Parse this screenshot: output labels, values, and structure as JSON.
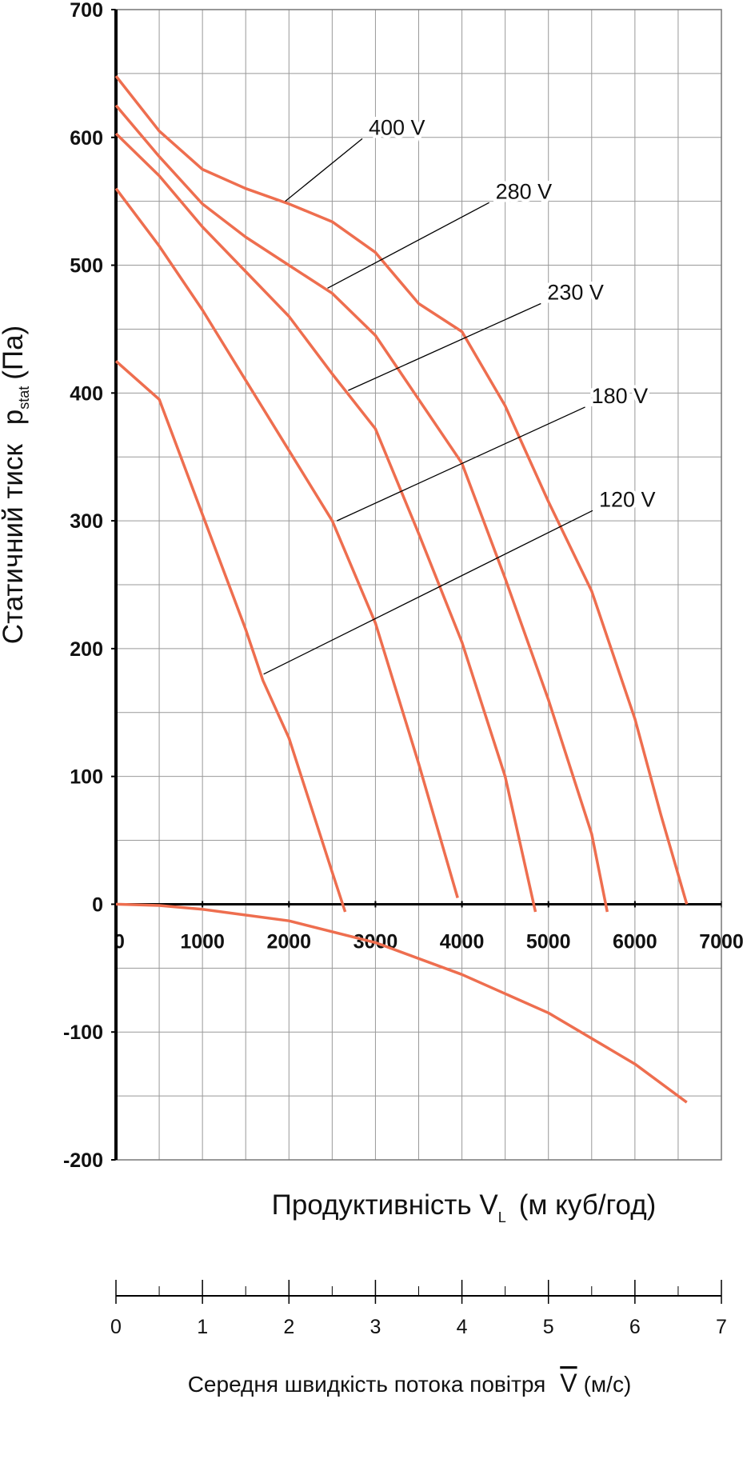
{
  "chart_data": {
    "type": "line",
    "ylabel": {
      "main": "Статичний тиск",
      "symbol": "p",
      "sub": "stat",
      "unit": "(Па)"
    },
    "xlabel": {
      "main": "Продуктивність V",
      "sub": "L",
      "unit": "(м куб/год)"
    },
    "x2label": {
      "main": "Середня швидкість потока повітря",
      "symbol": "V",
      "unit": "(м/с)"
    },
    "xlim": [
      0,
      7000
    ],
    "xticks": [
      0,
      1000,
      2000,
      3000,
      4000,
      5000,
      6000,
      7000
    ],
    "xminorticks": [
      500,
      1500,
      2500,
      3500,
      4500,
      5500,
      6500
    ],
    "ylim": [
      -200,
      700
    ],
    "yticks": [
      -200,
      -100,
      0,
      100,
      200,
      300,
      400,
      500,
      600,
      700
    ],
    "yminorticks": [
      -150,
      -50,
      50,
      150,
      250,
      350,
      450,
      550,
      650
    ],
    "x2lim": [
      0,
      7
    ],
    "x2ticks": [
      0,
      1,
      2,
      3,
      4,
      5,
      6,
      7
    ],
    "x2minorticks": [
      0.5,
      1.5,
      2.5,
      3.5,
      4.5,
      5.5,
      6.5
    ],
    "grid": true,
    "color": "#ee6e4f",
    "series": [
      {
        "x": [
          0,
          500,
          1000,
          1500,
          2000,
          2500,
          3000,
          3500,
          4000,
          4500,
          5000,
          5500,
          6000,
          6300,
          6600
        ],
        "values": [
          648,
          605,
          575,
          560,
          548,
          534,
          510,
          470,
          448,
          390,
          315,
          245,
          145,
          70,
          0
        ]
      },
      {
        "x": [
          0,
          500,
          1000,
          1500,
          2000,
          2500,
          3000,
          3500,
          4000,
          4500,
          5000,
          5500,
          5680
        ],
        "values": [
          625,
          585,
          548,
          522,
          500,
          478,
          445,
          395,
          345,
          255,
          160,
          55,
          -6
        ]
      },
      {
        "x": [
          0,
          500,
          1000,
          1500,
          2000,
          2500,
          3000,
          3500,
          4000,
          4500,
          4850
        ],
        "values": [
          603,
          570,
          530,
          495,
          460,
          415,
          372,
          290,
          205,
          100,
          -6
        ]
      },
      {
        "x": [
          0,
          500,
          1000,
          1500,
          2000,
          2500,
          3000,
          3500,
          3950
        ],
        "values": [
          560,
          515,
          465,
          410,
          355,
          300,
          220,
          110,
          5
        ]
      },
      {
        "x": [
          0,
          500,
          1000,
          1500,
          1700,
          2000,
          2500,
          2650
        ],
        "values": [
          425,
          395,
          305,
          215,
          175,
          130,
          25,
          -6
        ]
      },
      {
        "x": [
          0,
          500,
          1000,
          2000,
          3000,
          4000,
          5000,
          6000,
          6600
        ],
        "values": [
          0,
          -1,
          -4,
          -13,
          -30,
          -55,
          -85,
          -125,
          -155
        ]
      }
    ],
    "annotations": [
      {
        "text": "400 V",
        "x": 1957,
        "y": 550,
        "xytext": [
          2848,
          599
        ]
      },
      {
        "text": "280 V",
        "x": 2446,
        "y": 482,
        "xytext": [
          4315,
          549
        ]
      },
      {
        "text": "230 V",
        "x": 2685,
        "y": 402,
        "xytext": [
          4913,
          470
        ]
      },
      {
        "text": "180 V",
        "x": 2554,
        "y": 300,
        "xytext": [
          5424,
          389
        ]
      },
      {
        "text": "120 V",
        "x": 1707,
        "y": 180,
        "xytext": [
          5511,
          308
        ]
      }
    ]
  }
}
